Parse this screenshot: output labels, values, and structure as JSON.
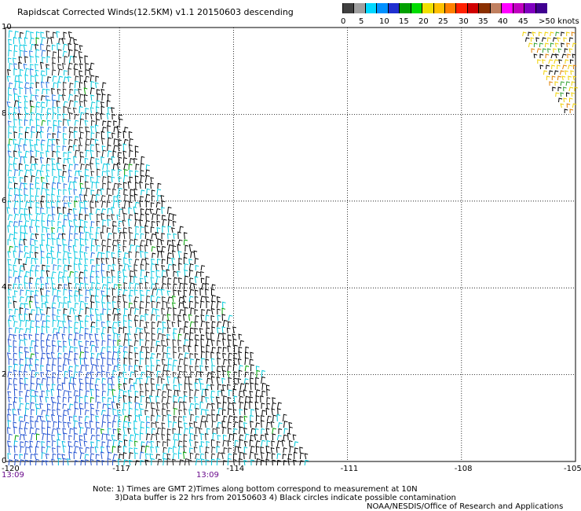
{
  "title": "Rapidscat Corrected Winds(12.5KM) v1.1 20150603 descending",
  "legend": {
    "colors": [
      "#404040",
      "#a0a0a0",
      "#00d8ff",
      "#0090ff",
      "#2030d0",
      "#00a000",
      "#00dc00",
      "#f0e000",
      "#ffc000",
      "#ff8000",
      "#ff2000",
      "#d00000",
      "#8b3000",
      "#c08060",
      "#ff00ff",
      "#c000c0",
      "#8000c0",
      "#400090"
    ],
    "labels": [
      "0",
      "5",
      "10",
      "15",
      "20",
      "25",
      "30",
      "35",
      "40",
      "45",
      ">50 knots"
    ]
  },
  "map": {
    "y_ticks": [
      "10",
      "8",
      "6",
      "4",
      "2",
      "0"
    ],
    "x_ticks": [
      "-120",
      "-117",
      "-114",
      "-111",
      "-108",
      "-105"
    ],
    "time_labels": [
      "13:09",
      "13:09"
    ]
  },
  "chart_data": {
    "type": "map",
    "x_axis": {
      "range": [
        -120,
        -105
      ],
      "ticks": [
        -120,
        -117,
        -114,
        -111,
        -108,
        -105
      ]
    },
    "y_axis": {
      "range": [
        0,
        10
      ],
      "ticks": [
        0,
        2,
        4,
        6,
        8,
        10
      ]
    },
    "grid": true,
    "swaths": [
      {
        "lon": [
          -120,
          -112
        ],
        "lat": [
          0,
          10
        ]
      },
      {
        "lon": [
          -106.5,
          -105
        ],
        "lat": [
          7.8,
          10
        ]
      }
    ]
  },
  "notes": {
    "line1": "Note: 1) Times are GMT 2)Times along bottom correspond to measurement at 10N",
    "line2": "3)Data buffer is 22 hrs from 20150603 4) Black circles indicate possible contamination",
    "line3": "NOAA/NESDIS/Office of Research and Applications"
  }
}
